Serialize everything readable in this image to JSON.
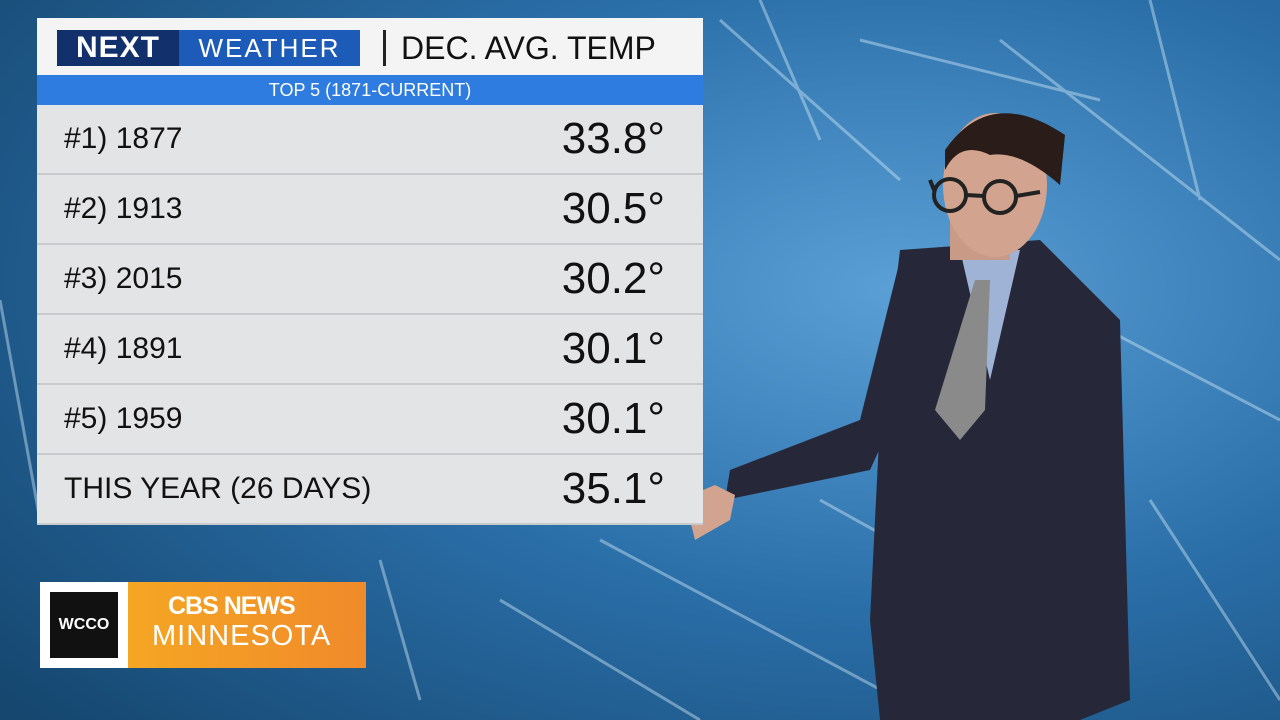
{
  "header": {
    "logo_next": "NEXT",
    "logo_weather": "WEATHER",
    "title": "DEC. AVG. TEMP"
  },
  "subtitle": "TOP 5 (1871-CURRENT)",
  "table": {
    "rows": [
      [
        "#1) 1877",
        "33.8°"
      ],
      [
        "#2) 1913",
        "30.5°"
      ],
      [
        "#3) 2015",
        "30.2°"
      ],
      [
        "#4) 1891",
        "30.1°"
      ],
      [
        "#5) 1959",
        "30.1°"
      ],
      [
        "THIS YEAR (26 DAYS)",
        "35.1°"
      ]
    ]
  },
  "branding": {
    "station": "WCCO",
    "network": "CBS NEWS",
    "region": "MINNESOTA"
  }
}
